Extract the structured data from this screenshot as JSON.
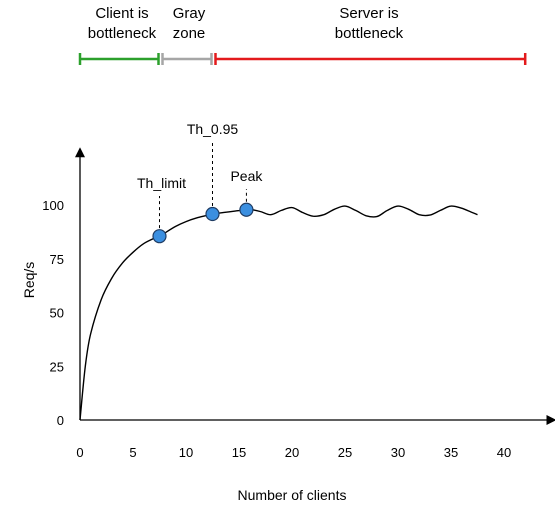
{
  "chart_data": {
    "type": "line",
    "xlabel": "Number of clients",
    "ylabel": "Req/s",
    "xlim": [
      0,
      44
    ],
    "ylim": [
      0,
      125
    ],
    "x_ticks": [
      "0",
      "5",
      "10",
      "15",
      "20",
      "25",
      "30",
      "35",
      "40"
    ],
    "y_ticks": [
      "0",
      "25",
      "50",
      "75",
      "100"
    ],
    "series": [
      {
        "x": [
          0,
          0.5,
          1,
          2,
          3,
          4,
          5,
          6,
          7,
          7.5,
          8,
          9,
          10,
          11,
          12,
          12.5,
          13,
          14,
          15,
          15.7,
          16,
          17,
          18,
          19,
          20,
          21,
          22,
          23,
          24,
          25,
          26,
          27,
          28,
          29,
          30,
          31,
          32,
          33,
          34,
          35,
          36,
          37,
          37.5
        ],
        "y": [
          0,
          25,
          40,
          56,
          66,
          73,
          78,
          82,
          84.5,
          85.5,
          87,
          90,
          92.3,
          94,
          95.2,
          95.8,
          96.2,
          96.8,
          97.4,
          97.8,
          98,
          97,
          95.5,
          97.5,
          98.8,
          96.5,
          94.8,
          95.5,
          98,
          99.5,
          97.5,
          95,
          94.6,
          97.5,
          99.5,
          98,
          95.5,
          95.3,
          97.5,
          99.5,
          98.5,
          96.5,
          95.5
        ]
      }
    ],
    "points": [
      {
        "label": "Th_limit",
        "x": 7.5,
        "y": 85.5
      },
      {
        "label": "Th_0.95",
        "x": 12.5,
        "y": 95.8
      },
      {
        "label": "Peak",
        "x": 15.7,
        "y": 97.8
      }
    ],
    "zones": [
      {
        "label_line1": "Client is",
        "label_line2": "bottleneck",
        "color": "#2ca02c",
        "x_range": [
          0,
          7.5
        ]
      },
      {
        "label_line1": "Gray",
        "label_line2": "zone",
        "color": "#a6a6a6",
        "x_range": [
          7.5,
          12.5
        ]
      },
      {
        "label_line1": "Server is",
        "label_line2": "bottleneck",
        "color": "#e31a1c",
        "x_range": [
          12.5,
          42
        ]
      }
    ],
    "colors": {
      "marker_fill": "#3b8fe0",
      "marker_stroke": "#1f3c63",
      "curve": "#000000"
    }
  }
}
